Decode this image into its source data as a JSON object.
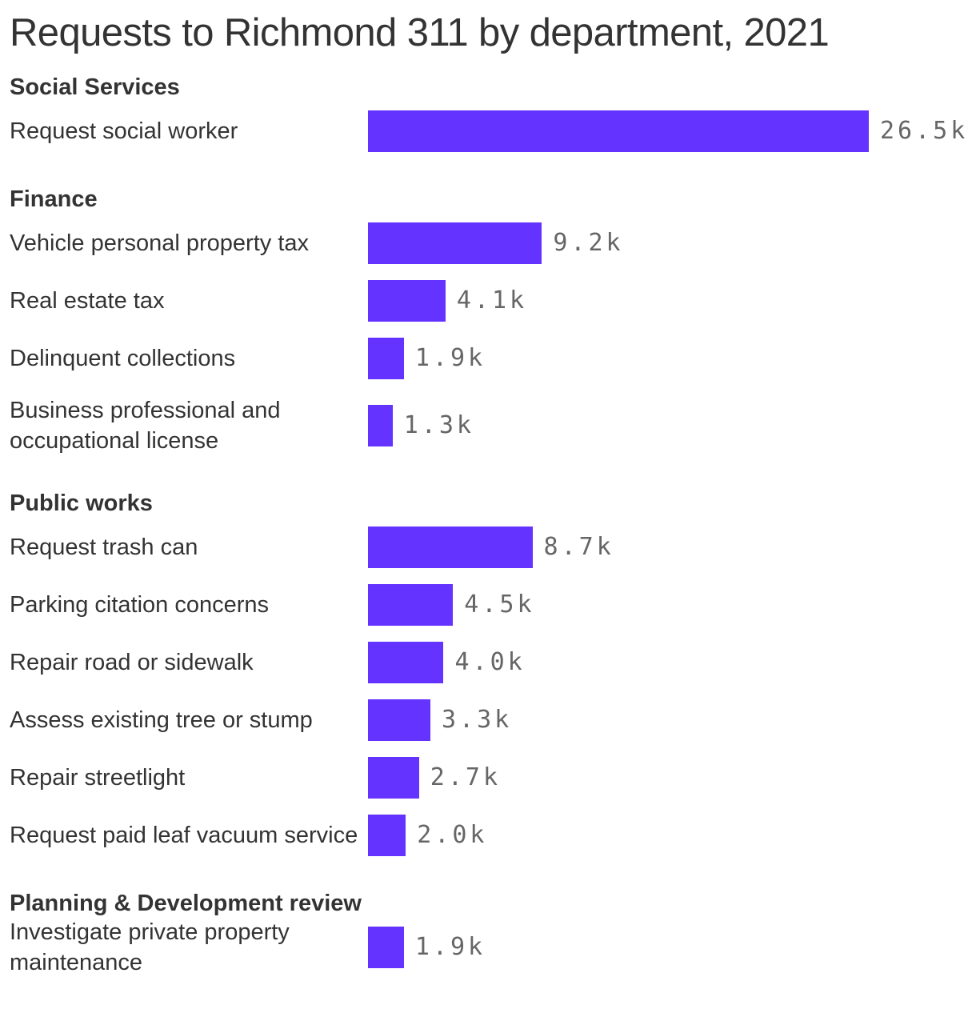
{
  "chart_data": {
    "type": "bar",
    "orientation": "horizontal",
    "title": "Requests to Richmond 311 by department, 2021",
    "xlabel": "",
    "ylabel": "",
    "xlim": [
      0,
      26500
    ],
    "grid": false,
    "bar_color": "#6533ff",
    "groups": [
      {
        "name": "Social Services",
        "items": [
          {
            "label": "Request social worker",
            "value": 26500,
            "display": "26.5k"
          }
        ]
      },
      {
        "name": "Finance",
        "items": [
          {
            "label": "Vehicle personal property tax",
            "value": 9200,
            "display": "9.2k"
          },
          {
            "label": "Real estate tax",
            "value": 4100,
            "display": "4.1k"
          },
          {
            "label": "Delinquent collections",
            "value": 1900,
            "display": "1.9k"
          },
          {
            "label": "Business professional and occupational license",
            "value": 1300,
            "display": "1.3k"
          }
        ]
      },
      {
        "name": "Public works",
        "items": [
          {
            "label": "Request trash can",
            "value": 8700,
            "display": "8.7k"
          },
          {
            "label": "Parking citation concerns",
            "value": 4500,
            "display": "4.5k"
          },
          {
            "label": "Repair road or sidewalk",
            "value": 4000,
            "display": "4.0k"
          },
          {
            "label": "Assess existing tree or stump",
            "value": 3300,
            "display": "3.3k"
          },
          {
            "label": "Repair streetlight",
            "value": 2700,
            "display": "2.7k"
          },
          {
            "label": "Request paid leaf vacuum service",
            "value": 2000,
            "display": "2.0k"
          }
        ]
      },
      {
        "name": "Planning & Development review",
        "items": [
          {
            "label": "Investigate private property maintenance",
            "value": 1900,
            "display": "1.9k"
          }
        ]
      }
    ]
  }
}
